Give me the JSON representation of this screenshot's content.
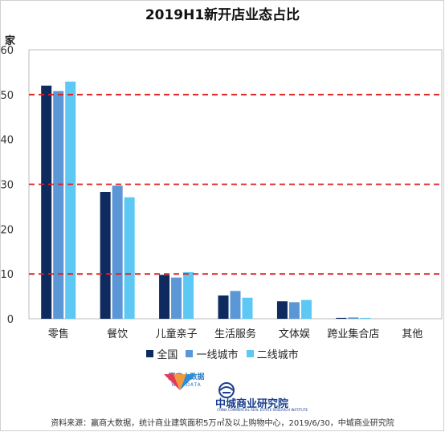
{
  "title": "2019H1新开店业态占比",
  "chart_data": {
    "type": "bar",
    "ylabel": "家",
    "ylim": [
      0,
      60
    ],
    "yticks": [
      0,
      10,
      20,
      30,
      40,
      50,
      60
    ],
    "dashed_reference_lines": [
      10,
      30,
      50
    ],
    "categories": [
      "零售",
      "餐饮",
      "儿童亲子",
      "生活服务",
      "文体娱",
      "跨业集合店",
      "其他"
    ],
    "series": [
      {
        "name": "全国",
        "color": "#0f2a5f",
        "values": [
          52,
          28.3,
          9.8,
          5.2,
          3.9,
          0.2,
          0
        ]
      },
      {
        "name": "一线城市",
        "color": "#5b97d6",
        "values": [
          50.8,
          29.7,
          9.2,
          6.2,
          3.7,
          0.3,
          0
        ]
      },
      {
        "name": "二线城市",
        "color": "#5cc8f3",
        "values": [
          52.9,
          27.1,
          10.4,
          4.7,
          4.2,
          0.2,
          0
        ]
      }
    ],
    "legend_position": "bottom"
  },
  "logos": {
    "left": {
      "cn": "赢商大数据",
      "en": "WIN·DATA"
    },
    "right": {
      "cn": "中城商业研究院",
      "en": "CHINA COMMERCIAL REAL ESTATE RESEARCH INSTITUTE"
    }
  },
  "source": "资料来源：赢商大数据，统计商业建筑面积5万㎡及以上购物中心，2019/6/30，中城商业研究院"
}
